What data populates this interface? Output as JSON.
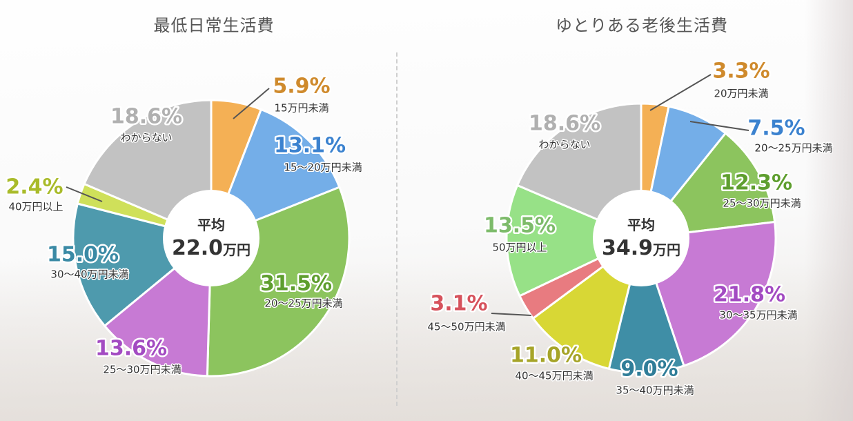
{
  "chart_data": [
    {
      "type": "pie",
      "title": "最低日常生活費",
      "center_label": "平均",
      "center_value": "22.0",
      "center_unit": "万円",
      "slices": [
        {
          "label": "15万円未満",
          "value": 5.9,
          "value_text": "5.9%",
          "color": "#f4b055",
          "text_color": "#cf8a2c"
        },
        {
          "label": "15～20万円未満",
          "value": 13.1,
          "value_text": "13.1%",
          "color": "#74aee8",
          "text_color": "#3b82cf"
        },
        {
          "label": "20～25万円未満",
          "value": 31.5,
          "value_text": "31.5%",
          "color": "#8cc45e",
          "text_color": "#5e9e2e"
        },
        {
          "label": "25～30万円未満",
          "value": 13.6,
          "value_text": "13.6%",
          "color": "#c77ad4",
          "text_color": "#a34bc2"
        },
        {
          "label": "30～40万円未満",
          "value": 15.0,
          "value_text": "15.0%",
          "color": "#4e9aad",
          "text_color": "#3a8aa5"
        },
        {
          "label": "40万円以上",
          "value": 2.4,
          "value_text": "2.4%",
          "color": "#cfe05a",
          "text_color": "#a9bb2a"
        },
        {
          "label": "わからない",
          "value": 18.6,
          "value_text": "18.6%",
          "color": "#c2c2c2",
          "text_color": "#b0b0b0"
        }
      ]
    },
    {
      "type": "pie",
      "title": "ゆとりある老後生活費",
      "center_label": "平均",
      "center_value": "34.9",
      "center_unit": "万円",
      "slices": [
        {
          "label": "20万円未満",
          "value": 3.3,
          "value_text": "3.3%",
          "color": "#f4b055",
          "text_color": "#cf8a2c"
        },
        {
          "label": "20～25万円未満",
          "value": 7.5,
          "value_text": "7.5%",
          "color": "#74aee8",
          "text_color": "#3b82cf"
        },
        {
          "label": "25～30万円未満",
          "value": 12.3,
          "value_text": "12.3%",
          "color": "#8cc45e",
          "text_color": "#5e9e2e"
        },
        {
          "label": "30～35万円未満",
          "value": 21.8,
          "value_text": "21.8%",
          "color": "#c77ad4",
          "text_color": "#a34bc2"
        },
        {
          "label": "35～40万円未満",
          "value": 9.0,
          "value_text": "9.0%",
          "color": "#3f8ea6",
          "text_color": "#2f7d98"
        },
        {
          "label": "40～45万円未満",
          "value": 11.0,
          "value_text": "11.0%",
          "color": "#d8d735",
          "text_color": "#a6a428"
        },
        {
          "label": "45～50万円未満",
          "value": 3.1,
          "value_text": "3.1%",
          "color": "#e87b80",
          "text_color": "#d6525c"
        },
        {
          "label": "50万円以上",
          "value": 13.5,
          "value_text": "13.5%",
          "color": "#97e187",
          "text_color": "#7dbb6a"
        },
        {
          "label": "わからない",
          "value": 18.6,
          "value_text": "18.6%",
          "color": "#c2c2c2",
          "text_color": "#b0b0b0"
        }
      ]
    }
  ]
}
